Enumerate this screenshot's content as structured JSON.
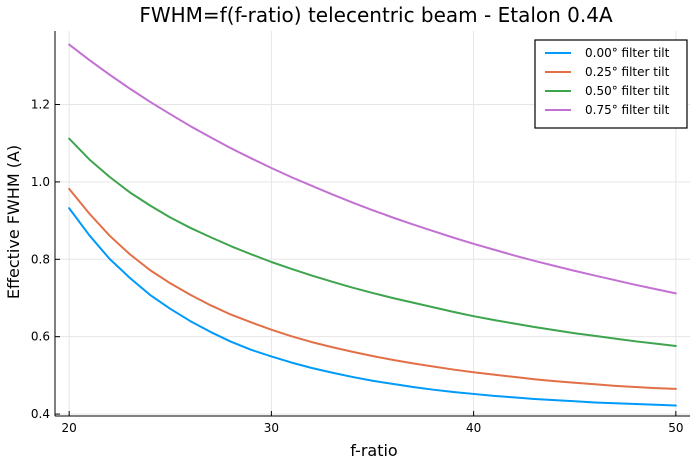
{
  "chart_data": {
    "type": "line",
    "title": "FWHM=f(f-ratio) telecentric beam - Etalon 0.4A",
    "xlabel": "f-ratio",
    "ylabel": "Effective FWHM (A)",
    "xlim": [
      19.3,
      50.7
    ],
    "ylim": [
      0.395,
      1.39
    ],
    "xticks": [
      20,
      30,
      40,
      50
    ],
    "yticks": [
      0.4,
      0.6,
      0.8,
      1.0,
      1.2
    ],
    "ytick_labels": [
      "0.4",
      "0.6",
      "0.8",
      "1.0",
      "1.2"
    ],
    "grid": true,
    "legend_position": "top-right",
    "x": [
      20,
      21,
      22,
      23,
      24,
      25,
      26,
      27,
      28,
      29,
      30,
      31,
      32,
      33,
      34,
      35,
      36,
      37,
      38,
      39,
      40,
      41,
      42,
      43,
      44,
      45,
      46,
      47,
      48,
      49,
      50
    ],
    "series": [
      {
        "name": "0.00° filter tilt",
        "color": "#009AFA",
        "values": [
          0.932,
          0.862,
          0.801,
          0.752,
          0.708,
          0.672,
          0.64,
          0.612,
          0.587,
          0.566,
          0.549,
          0.533,
          0.519,
          0.507,
          0.496,
          0.486,
          0.478,
          0.47,
          0.463,
          0.457,
          0.452,
          0.447,
          0.443,
          0.439,
          0.436,
          0.433,
          0.43,
          0.428,
          0.426,
          0.424,
          0.422
        ]
      },
      {
        "name": "0.25° filter tilt",
        "color": "#E36F47",
        "values": [
          0.982,
          0.918,
          0.861,
          0.813,
          0.772,
          0.738,
          0.708,
          0.681,
          0.657,
          0.637,
          0.618,
          0.601,
          0.586,
          0.573,
          0.561,
          0.55,
          0.54,
          0.531,
          0.523,
          0.515,
          0.508,
          0.502,
          0.496,
          0.49,
          0.485,
          0.481,
          0.477,
          0.473,
          0.47,
          0.467,
          0.465
        ]
      },
      {
        "name": "0.50° filter tilt",
        "color": "#3EA44E",
        "values": [
          1.112,
          1.058,
          1.013,
          0.973,
          0.939,
          0.908,
          0.881,
          0.857,
          0.834,
          0.813,
          0.793,
          0.775,
          0.758,
          0.742,
          0.727,
          0.713,
          0.7,
          0.688,
          0.676,
          0.664,
          0.653,
          0.643,
          0.634,
          0.625,
          0.617,
          0.609,
          0.602,
          0.595,
          0.588,
          0.582,
          0.576
        ]
      },
      {
        "name": "0.75° filter tilt",
        "color": "#C271D2",
        "values": [
          1.355,
          1.315,
          1.277,
          1.241,
          1.207,
          1.175,
          1.144,
          1.115,
          1.087,
          1.061,
          1.036,
          1.012,
          0.99,
          0.968,
          0.947,
          0.927,
          0.908,
          0.89,
          0.873,
          0.856,
          0.84,
          0.825,
          0.81,
          0.796,
          0.783,
          0.77,
          0.758,
          0.746,
          0.734,
          0.723,
          0.712
        ]
      }
    ]
  }
}
